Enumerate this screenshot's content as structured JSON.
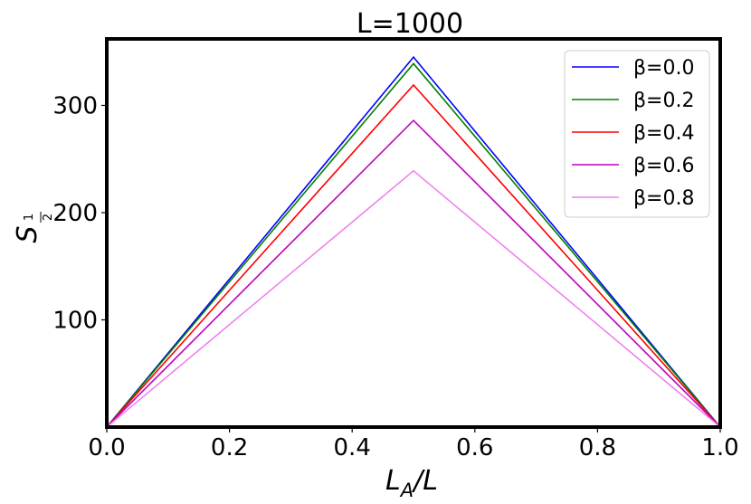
{
  "chart_data": {
    "type": "line",
    "title": "L=1000",
    "xlabel": {
      "main": "L",
      "sub": "A",
      "rest": "/L"
    },
    "ylabel": {
      "main": "S",
      "sub_num": "1",
      "sub_den": "2"
    },
    "xlim": [
      0.0,
      1.0
    ],
    "ylim": [
      0,
      362
    ],
    "xticks": [
      0.0,
      0.2,
      0.4,
      0.6,
      0.8,
      1.0
    ],
    "xtick_labels": [
      "0.0",
      "0.2",
      "0.4",
      "0.6",
      "0.8",
      "1.0"
    ],
    "yticks": [
      100,
      200,
      300
    ],
    "ytick_labels": [
      "100",
      "200",
      "300"
    ],
    "grid": false,
    "legend_position": "top-right",
    "x": [
      0.0,
      0.5,
      1.0
    ],
    "series": [
      {
        "name": "β=0.0",
        "color": "#0000ff",
        "values": [
          0,
          345,
          0
        ]
      },
      {
        "name": "β=0.2",
        "color": "#008000",
        "values": [
          0,
          339,
          0
        ]
      },
      {
        "name": "β=0.4",
        "color": "#ff0000",
        "values": [
          0,
          319,
          0
        ]
      },
      {
        "name": "β=0.6",
        "color": "#bf00bf",
        "values": [
          0,
          286,
          0
        ]
      },
      {
        "name": "β=0.8",
        "color": "#ee82ee",
        "values": [
          0,
          239,
          0
        ]
      }
    ]
  }
}
